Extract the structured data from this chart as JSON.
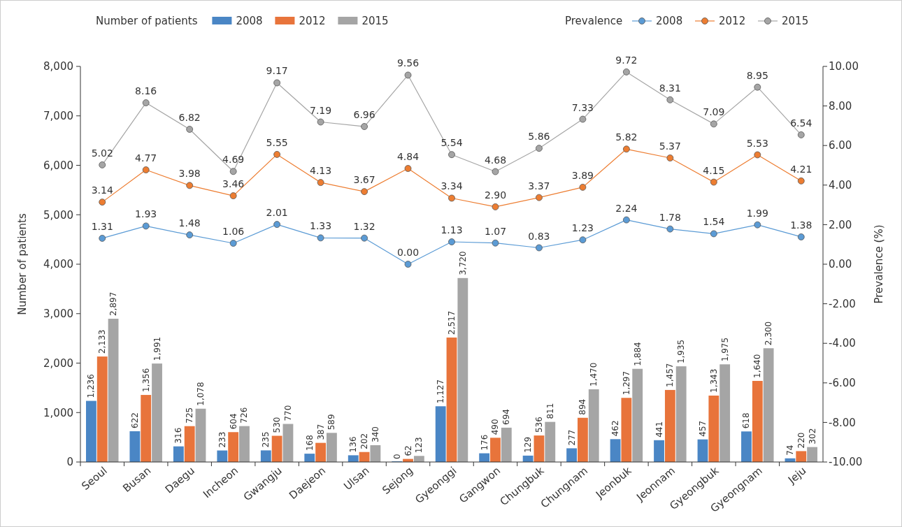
{
  "chart_data": {
    "type": "bar",
    "ylabel": "Number of patients",
    "y2label": "Prevalence (%)",
    "legend_title": "Number of patients",
    "annotations": [
      "Prevalence"
    ],
    "legend": "top",
    "marker": "circle",
    "categories": [
      "Seoul",
      "Busan",
      "Daegu",
      "Incheon",
      "Gwangju",
      "Daejeon",
      "Ulsan",
      "Sejong",
      "Gyeonggi",
      "Gangwon",
      "Chungbuk",
      "Chungnam",
      "Jeonbuk",
      "Jeonnam",
      "Gyeongbuk",
      "Gyeongnam",
      "Jeju"
    ],
    "ylim": [
      0,
      8000
    ],
    "yticks": [
      0,
      {
        "value": 1000,
        "label": "1,000"
      },
      {
        "value": 2000,
        "label": "2,000"
      },
      {
        "value": 3000,
        "label": "3,000"
      },
      {
        "value": 4000,
        "label": "4,000"
      },
      {
        "value": 5000,
        "label": "5,000"
      },
      {
        "value": 6000,
        "label": "6,000"
      },
      {
        "value": 7000,
        "label": "7,000"
      },
      {
        "value": 8000,
        "label": "8,000"
      }
    ],
    "y2lim": [
      -10,
      10
    ],
    "y2ticks": [
      {
        "value": -10,
        "label": "-10.00"
      },
      {
        "value": -8,
        "label": "-8.00"
      },
      {
        "value": -6,
        "label": "-6.00"
      },
      {
        "value": -4,
        "label": "-4.00"
      },
      {
        "value": -2,
        "label": "-2.00"
      },
      {
        "value": 0,
        "label": "0.00"
      },
      {
        "value": 2,
        "label": "2.00"
      },
      {
        "value": 4,
        "label": "4.00"
      },
      {
        "value": 6,
        "label": "6.00"
      },
      {
        "value": 8,
        "label": "8.00"
      },
      {
        "value": 10,
        "label": "10.00"
      }
    ],
    "series": [
      {
        "name": "2008",
        "type": "bar",
        "color": "#4a86c5",
        "values": [
          1236,
          622,
          316,
          233,
          235,
          168,
          136,
          0,
          1127,
          176,
          129,
          277,
          462,
          441,
          457,
          618,
          74
        ],
        "value_labels": [
          "1,236",
          "622",
          "316",
          "233",
          "235",
          "168",
          "136",
          "0",
          "1,127",
          "176",
          "129",
          "277",
          "462",
          "441",
          "457",
          "618",
          "74"
        ]
      },
      {
        "name": "2012",
        "type": "bar",
        "color": "#e8743b",
        "values": [
          2133,
          1356,
          725,
          604,
          530,
          387,
          202,
          62,
          2517,
          490,
          536,
          894,
          1297,
          1457,
          1343,
          1640,
          220
        ],
        "value_labels": [
          "2,133",
          "1,356",
          "725",
          "604",
          "530",
          "387",
          "202",
          "62",
          "2,517",
          "490",
          "536",
          "894",
          "1,297",
          "1,457",
          "1,343",
          "1,640",
          "220"
        ]
      },
      {
        "name": "2015",
        "type": "bar",
        "color": "#a5a5a5",
        "values": [
          2897,
          1991,
          1078,
          726,
          770,
          589,
          340,
          123,
          3720,
          694,
          811,
          1470,
          1884,
          1935,
          1975,
          2300,
          302
        ],
        "value_labels": [
          "2,897",
          "1,991",
          "1,078",
          "726",
          "770",
          "589",
          "340",
          "123",
          "3,720",
          "694",
          "811",
          "1,470",
          "1,884",
          "1,935",
          "1,975",
          "2,300",
          "302"
        ]
      },
      {
        "name": "2008",
        "type": "line",
        "axis": "y2",
        "color": "#5b9bd5",
        "values": [
          1.31,
          1.93,
          1.48,
          1.06,
          2.01,
          1.33,
          1.32,
          0.0,
          1.13,
          1.07,
          0.83,
          1.23,
          2.24,
          1.78,
          1.54,
          1.99,
          1.38
        ],
        "value_labels": [
          "1.31",
          "1.93",
          "1.48",
          "1.06",
          "2.01",
          "1.33",
          "1.32",
          "0.00",
          "1.13",
          "1.07",
          "0.83",
          "1.23",
          "2.24",
          "1.78",
          "1.54",
          "1.99",
          "1.38"
        ]
      },
      {
        "name": "2012",
        "type": "line",
        "axis": "y2",
        "color": "#ed7d31",
        "values": [
          3.14,
          4.77,
          3.98,
          3.46,
          5.55,
          4.13,
          3.67,
          4.84,
          3.34,
          2.9,
          3.37,
          3.89,
          5.82,
          5.37,
          4.15,
          5.53,
          4.21
        ],
        "value_labels": [
          "3.14",
          "4.77",
          "3.98",
          "3.46",
          "5.55",
          "4.13",
          "3.67",
          "4.84",
          "3.34",
          "2.90",
          "3.37",
          "3.89",
          "5.82",
          "5.37",
          "4.15",
          "5.53",
          "4.21"
        ]
      },
      {
        "name": "2015",
        "type": "line",
        "axis": "y2",
        "color": "#a5a5a5",
        "values": [
          5.02,
          8.16,
          6.82,
          4.69,
          9.17,
          7.19,
          6.96,
          9.56,
          5.54,
          4.68,
          5.86,
          7.33,
          9.72,
          8.31,
          7.09,
          8.95,
          6.54
        ],
        "value_labels": [
          "5.02",
          "8.16",
          "6.82",
          "4.69",
          "9.17",
          "7.19",
          "6.96",
          "9.56",
          "5.54",
          "4.68",
          "5.86",
          "7.33",
          "9.72",
          "8.31",
          "7.09",
          "8.95",
          "6.54"
        ]
      }
    ]
  }
}
